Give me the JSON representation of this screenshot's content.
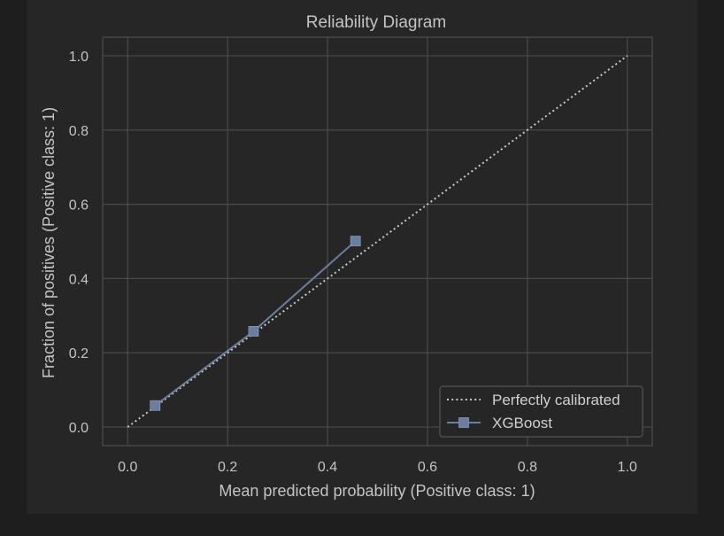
{
  "chart_data": {
    "type": "line",
    "title": "Reliability Diagram",
    "xlabel": "Mean predicted probability (Positive class: 1)",
    "ylabel": "Fraction of positives (Positive class: 1)",
    "xlim": [
      -0.05,
      1.05
    ],
    "ylim": [
      -0.05,
      1.05
    ],
    "x_ticks": [
      0.0,
      0.2,
      0.4,
      0.6,
      0.8,
      1.0
    ],
    "y_ticks": [
      0.0,
      0.2,
      0.4,
      0.6,
      0.8,
      1.0
    ],
    "x_tick_labels": [
      "0.0",
      "0.2",
      "0.4",
      "0.6",
      "0.8",
      "1.0"
    ],
    "y_tick_labels": [
      "0.0",
      "0.2",
      "0.4",
      "0.6",
      "0.8",
      "1.0"
    ],
    "grid": true,
    "legend_position": "lower-right",
    "series": [
      {
        "name": "Perfectly calibrated",
        "style": "dotted",
        "color": "#c8c8c8",
        "x": [
          0.0,
          1.0
        ],
        "y": [
          0.0,
          1.0
        ]
      },
      {
        "name": "XGBoost",
        "style": "solid",
        "marker": "square",
        "color": "#6b7ea0",
        "x": [
          0.055,
          0.252,
          0.456
        ],
        "y": [
          0.058,
          0.258,
          0.501
        ]
      }
    ]
  },
  "colors": {
    "page_background": "#1e1e1e",
    "figure_background": "#262626",
    "plot_background": "#262626",
    "grid": "#4a4a4a",
    "axes_edge": "#4f4f4f",
    "text": "#c4c4c4"
  }
}
